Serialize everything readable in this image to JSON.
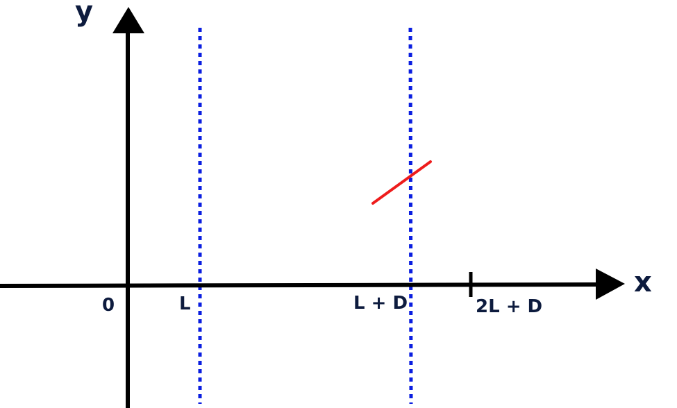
{
  "axes": {
    "x_label": "x",
    "y_label": "y"
  },
  "ticks": {
    "origin": "0",
    "l": "L",
    "l_plus_d": "L + D",
    "two_l_plus_d": "2L + D"
  },
  "colors": {
    "axis": "#000000",
    "boundary_lines": "#0a1ee0",
    "segment": "#ee1c1c",
    "label_text": "#0d1b3e"
  }
}
